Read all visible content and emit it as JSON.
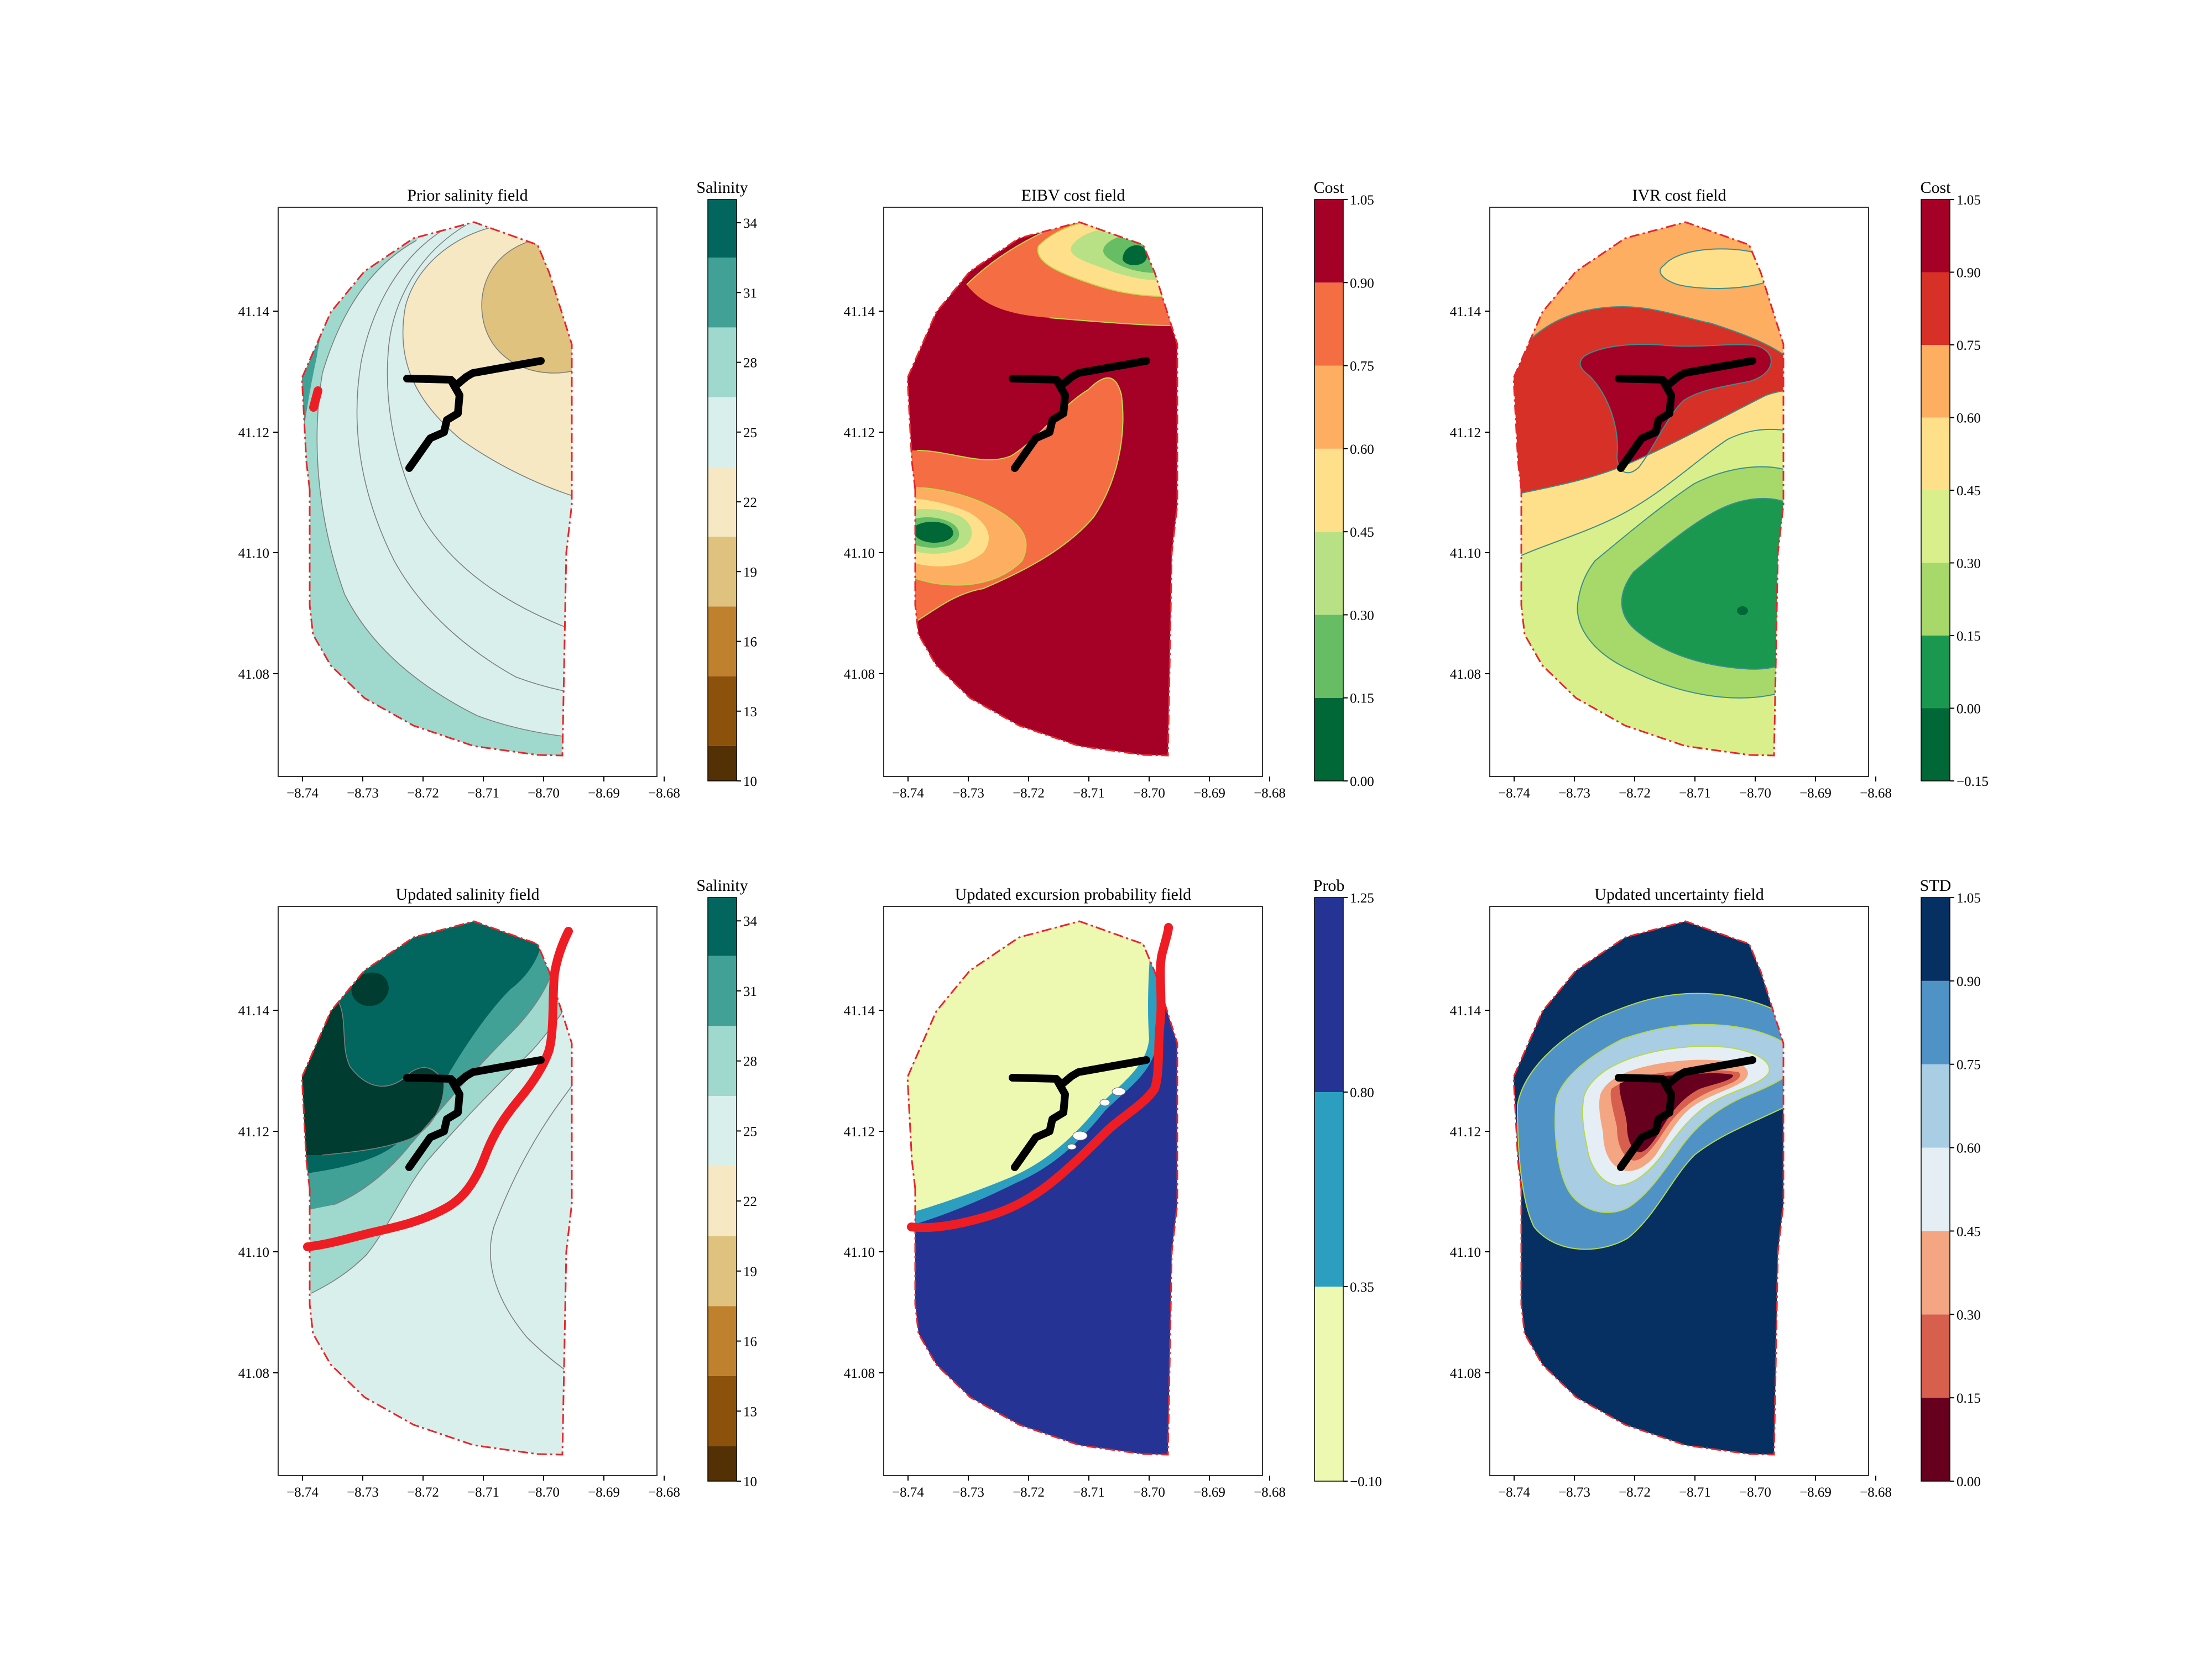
{
  "colors": {
    "boundary": "#e8262a",
    "path": "#000000",
    "frontier": "#ee1d23",
    "contour_line": "#7f7f7f"
  },
  "chart_data": [
    {
      "id": "prior_salinity",
      "type": "contour",
      "title": "Prior salinity field",
      "colorbar_title": "Salinity",
      "x_ticks": [
        "−8.74",
        "−8.73",
        "−8.72",
        "−8.71",
        "−8.70",
        "−8.69",
        "−8.68"
      ],
      "y_ticks": [
        "41.14",
        "41.12",
        "41.10",
        "41.08"
      ],
      "colorbar_ticks": [
        "10",
        "13",
        "16",
        "19",
        "22",
        "25",
        "28",
        "31",
        "34"
      ],
      "levels": [
        10,
        11.5,
        14.5,
        17.5,
        20.5,
        23.5,
        26.5,
        29.5,
        32.5,
        35
      ],
      "colors": [
        "#543005",
        "#8c510a",
        "#bf812d",
        "#dfc27d",
        "#f6e8c3",
        "#d9efec",
        "#9fd8cd",
        "#41a196",
        "#02665e",
        "#003c30"
      ]
    },
    {
      "id": "eibv_cost",
      "type": "contour",
      "title": "EIBV cost field",
      "colorbar_title": "Cost",
      "x_ticks": [
        "−8.74",
        "−8.73",
        "−8.72",
        "−8.71",
        "−8.70",
        "−8.69",
        "−8.68"
      ],
      "y_ticks": [
        "41.14",
        "41.12",
        "41.10",
        "41.08"
      ],
      "colorbar_ticks": [
        "0.00",
        "0.15",
        "0.30",
        "0.45",
        "0.60",
        "0.75",
        "0.90",
        "1.05"
      ],
      "levels": [
        0.0,
        0.15,
        0.3,
        0.45,
        0.6,
        0.75,
        0.9,
        1.05
      ],
      "colors": [
        "#006837",
        "#66bd63",
        "#b8e186",
        "#fee08b",
        "#fdae61",
        "#f46d43",
        "#a50026"
      ]
    },
    {
      "id": "ivr_cost",
      "type": "contour",
      "title": "IVR cost field",
      "colorbar_title": "Cost",
      "x_ticks": [
        "−8.74",
        "−8.73",
        "−8.72",
        "−8.71",
        "−8.70",
        "−8.69",
        "−8.68"
      ],
      "y_ticks": [
        "41.14",
        "41.12",
        "41.10",
        "41.08"
      ],
      "colorbar_ticks": [
        "−0.15",
        "0.00",
        "0.15",
        "0.30",
        "0.45",
        "0.60",
        "0.75",
        "0.90",
        "1.05"
      ],
      "levels": [
        -0.15,
        0.0,
        0.15,
        0.3,
        0.45,
        0.6,
        0.75,
        0.9,
        1.05
      ],
      "colors": [
        "#006837",
        "#1a9850",
        "#a6d96a",
        "#d9ef8b",
        "#fee08b",
        "#fdae61",
        "#d73027",
        "#a50026"
      ]
    },
    {
      "id": "updated_salinity",
      "type": "contour",
      "title": "Updated salinity field",
      "colorbar_title": "Salinity",
      "x_ticks": [
        "−8.74",
        "−8.73",
        "−8.72",
        "−8.71",
        "−8.70",
        "−8.69",
        "−8.68"
      ],
      "y_ticks": [
        "41.14",
        "41.12",
        "41.10",
        "41.08"
      ],
      "colorbar_ticks": [
        "10",
        "13",
        "16",
        "19",
        "22",
        "25",
        "28",
        "31",
        "34"
      ],
      "levels": [
        10,
        11.5,
        14.5,
        17.5,
        20.5,
        23.5,
        26.5,
        29.5,
        32.5,
        35
      ],
      "colors": [
        "#543005",
        "#8c510a",
        "#bf812d",
        "#dfc27d",
        "#f6e8c3",
        "#d9efec",
        "#9fd8cd",
        "#41a196",
        "#02665e",
        "#003c30"
      ]
    },
    {
      "id": "excursion_probability",
      "type": "contour",
      "title": "Updated excursion probability field",
      "colorbar_title": "Prob",
      "x_ticks": [
        "−8.74",
        "−8.73",
        "−8.72",
        "−8.71",
        "−8.70",
        "−8.69",
        "−8.68"
      ],
      "y_ticks": [
        "41.14",
        "41.12",
        "41.10",
        "41.08"
      ],
      "colorbar_ticks": [
        "−0.10",
        "0.35",
        "0.80",
        "1.25"
      ],
      "levels": [
        -0.1,
        0.35,
        0.8,
        1.25
      ],
      "colors": [
        "#edf8b1",
        "#2c9fc0",
        "#253494"
      ]
    },
    {
      "id": "updated_uncertainty",
      "type": "contour",
      "title": "Updated uncertainty field",
      "colorbar_title": "STD",
      "x_ticks": [
        "−8.74",
        "−8.73",
        "−8.72",
        "−8.71",
        "−8.70",
        "−8.69",
        "−8.68"
      ],
      "y_ticks": [
        "41.14",
        "41.12",
        "41.10",
        "41.08"
      ],
      "colorbar_ticks": [
        "0.00",
        "0.15",
        "0.30",
        "0.45",
        "0.60",
        "0.75",
        "0.90",
        "1.05"
      ],
      "levels": [
        0.0,
        0.15,
        0.3,
        0.45,
        0.6,
        0.75,
        0.9,
        1.05
      ],
      "colors": [
        "#67001f",
        "#d6604d",
        "#f4a582",
        "#e4eef4",
        "#a9cde3",
        "#4f93c6",
        "#053061"
      ]
    }
  ]
}
